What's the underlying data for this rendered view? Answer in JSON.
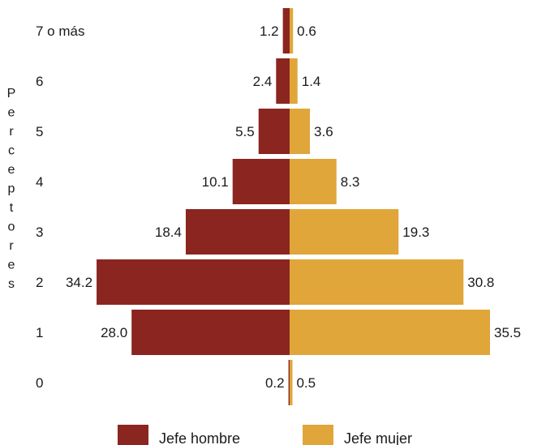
{
  "chart_data": {
    "type": "bar",
    "orientation": "horizontal-diverging",
    "title": "",
    "xlabel": "",
    "ylabel": "Perceptores",
    "categories": [
      "7 o más",
      "6",
      "5",
      "4",
      "3",
      "2",
      "1",
      "0"
    ],
    "series": [
      {
        "name": "Jefe hombre",
        "color": "#8b2520",
        "side": "left",
        "values": [
          1.2,
          2.4,
          5.5,
          10.1,
          18.4,
          34.2,
          28.0,
          0.2
        ]
      },
      {
        "name": "Jefe mujer",
        "color": "#e0a63a",
        "side": "right",
        "values": [
          0.6,
          1.4,
          3.6,
          8.3,
          19.3,
          30.8,
          35.5,
          0.5
        ]
      }
    ],
    "value_labels_left": [
      "1.2",
      "2.4",
      "5.5",
      "10.1",
      "18.4",
      "34.2",
      "28.0",
      "0.2"
    ],
    "value_labels_right": [
      "0.6",
      "1.4",
      "3.6",
      "8.3",
      "19.3",
      "30.8",
      "35.5",
      "0.5"
    ],
    "xlim": [
      -35.5,
      35.5
    ],
    "grid": false,
    "legend": "bottom"
  }
}
